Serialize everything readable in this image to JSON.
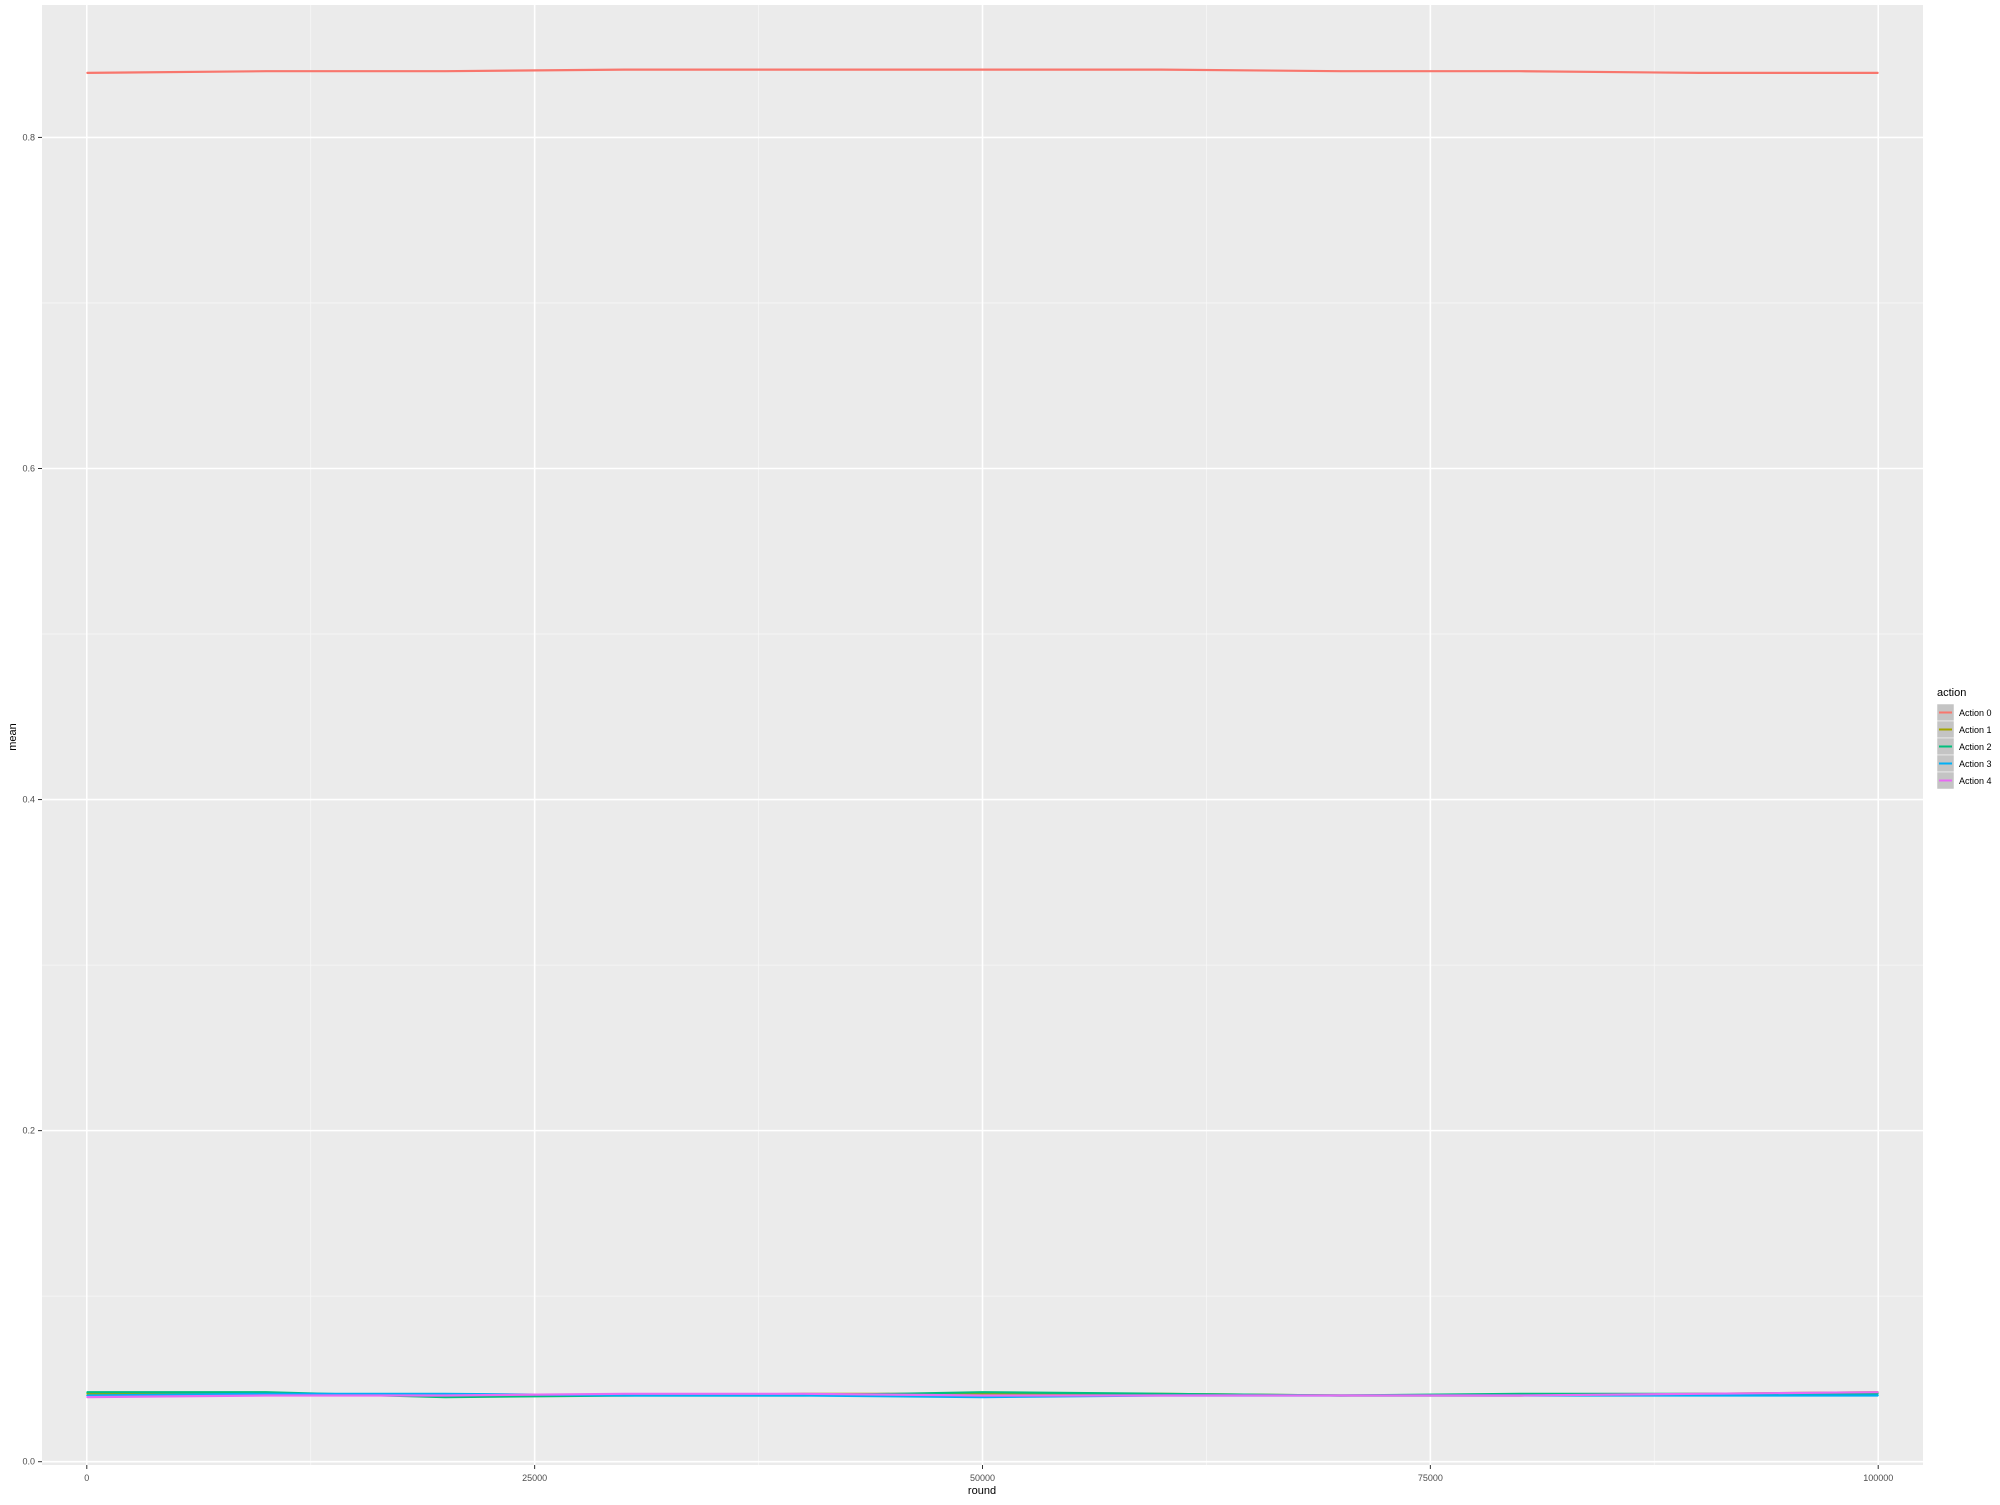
{
  "chart_data": {
    "type": "line",
    "xlabel": "round",
    "ylabel": "mean",
    "xlim": [
      -2500,
      102500
    ],
    "ylim": [
      -0.002,
      0.88
    ],
    "x_ticks": [
      0,
      25000,
      50000,
      75000,
      100000
    ],
    "x_tick_labels": [
      "0",
      "25000",
      "50000",
      "75000",
      "100000"
    ],
    "y_ticks": [
      0.0,
      0.2,
      0.4,
      0.6,
      0.8
    ],
    "y_tick_labels": [
      "0.0",
      "0.2",
      "0.4",
      "0.6",
      "0.8"
    ],
    "x_minor_ticks": [
      12500,
      37500,
      62500,
      87500
    ],
    "y_minor_ticks": [
      0.1,
      0.3,
      0.5,
      0.7
    ],
    "grid": true,
    "legend": {
      "title": "action",
      "position": "right"
    },
    "x": [
      0,
      10000,
      20000,
      30000,
      40000,
      50000,
      60000,
      70000,
      80000,
      90000,
      100000
    ],
    "series": [
      {
        "name": "Action 0",
        "color": "#F8766D",
        "values": [
          0.839,
          0.84,
          0.84,
          0.841,
          0.841,
          0.841,
          0.841,
          0.84,
          0.84,
          0.839,
          0.839
        ]
      },
      {
        "name": "Action 1",
        "color": "#A3A500",
        "values": [
          0.041,
          0.041,
          0.04,
          0.04,
          0.041,
          0.041,
          0.041,
          0.04,
          0.04,
          0.041,
          0.042
        ]
      },
      {
        "name": "Action 2",
        "color": "#00BF7D",
        "values": [
          0.042,
          0.042,
          0.039,
          0.04,
          0.04,
          0.042,
          0.041,
          0.04,
          0.041,
          0.041,
          0.041
        ]
      },
      {
        "name": "Action 3",
        "color": "#00B0F6",
        "values": [
          0.04,
          0.041,
          0.041,
          0.04,
          0.04,
          0.039,
          0.04,
          0.04,
          0.04,
          0.04,
          0.04
        ]
      },
      {
        "name": "Action 4",
        "color": "#E76BF3",
        "values": [
          0.039,
          0.04,
          0.04,
          0.041,
          0.041,
          0.04,
          0.04,
          0.04,
          0.04,
          0.041,
          0.042
        ]
      }
    ]
  }
}
